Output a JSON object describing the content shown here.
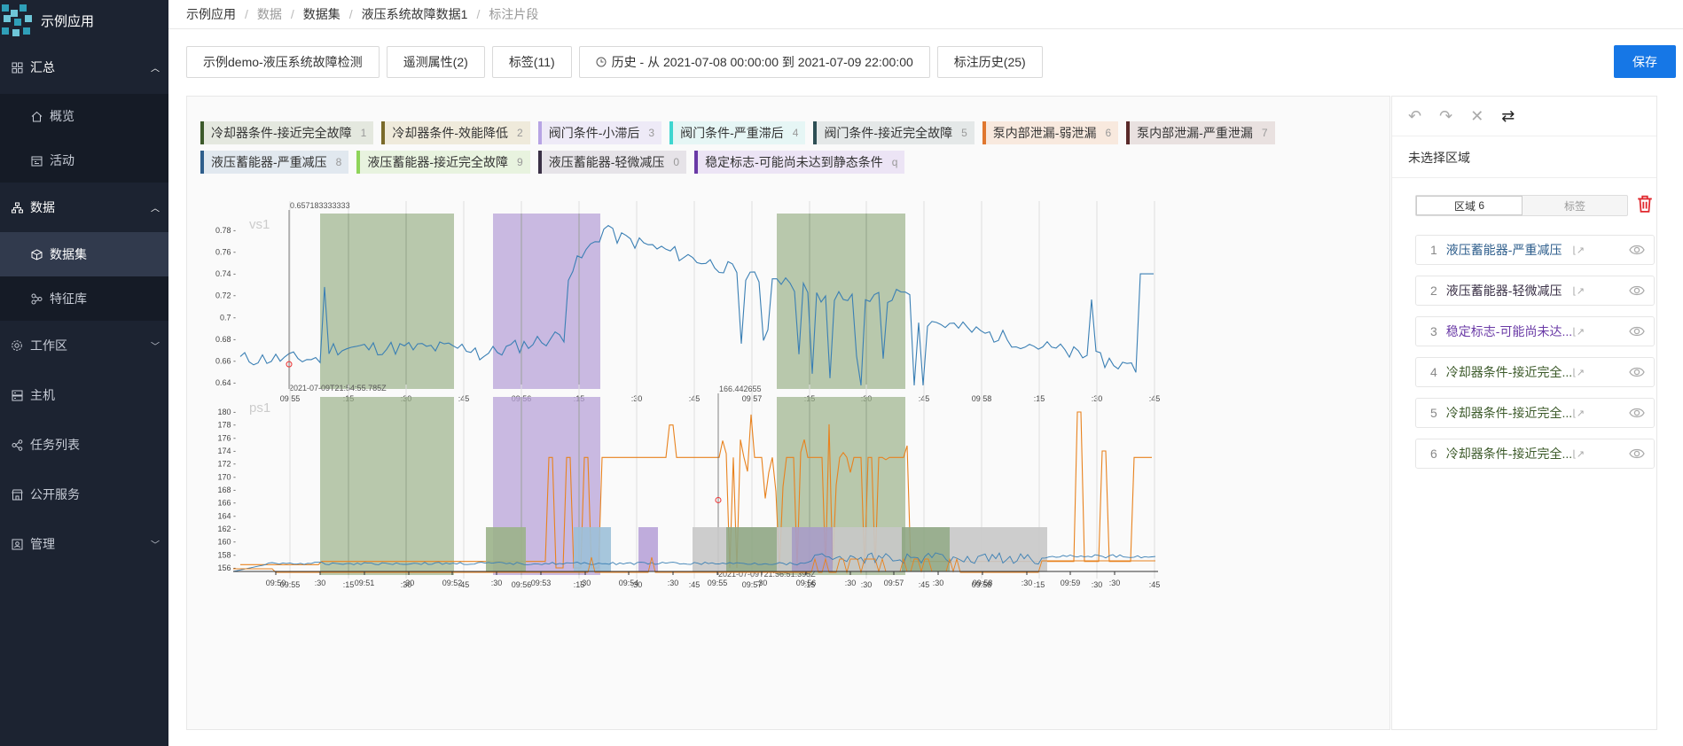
{
  "app": {
    "name": "示例应用"
  },
  "sidebar": {
    "items": [
      {
        "label": "汇总",
        "icon": "grid-icon"
      },
      {
        "label": "概览",
        "icon": "home-icon"
      },
      {
        "label": "活动",
        "icon": "calendar-icon"
      },
      {
        "label": "数据",
        "icon": "sitemap-icon"
      },
      {
        "label": "数据集",
        "icon": "cube-icon"
      },
      {
        "label": "特征库",
        "icon": "feature-icon"
      },
      {
        "label": "工作区",
        "icon": "gear-icon"
      },
      {
        "label": "主机",
        "icon": "server-icon"
      },
      {
        "label": "任务列表",
        "icon": "task-icon"
      },
      {
        "label": "公开服务",
        "icon": "shop-icon"
      },
      {
        "label": "管理",
        "icon": "admin-icon"
      }
    ]
  },
  "breadcrumb": [
    "示例应用",
    "数据",
    "数据集",
    "液压系统故障数据1",
    "标注片段"
  ],
  "toolbar": {
    "dataset": "示例demo-液压系统故障检测",
    "telemetry": "遥测属性(2)",
    "labels": "标签(11)",
    "history": "历史 - 从 2021-07-08 00:00:00 到 2021-07-09 22:00:00",
    "label_history": "标注历史(25)",
    "save": "保存"
  },
  "tags": [
    {
      "label": "冷却器条件-接近完全故障",
      "key": "1",
      "color": "#3c5a2a",
      "bg": "#e4e8df"
    },
    {
      "label": "冷却器条件-效能降低",
      "key": "2",
      "color": "#7a6a2a",
      "bg": "#efeadb"
    },
    {
      "label": "阀门条件-小滞后",
      "key": "3",
      "color": "#b7a4e4",
      "bg": "#eeeaf7"
    },
    {
      "label": "阀门条件-严重滞后",
      "key": "4",
      "color": "#3ed6d0",
      "bg": "#e6f6f5"
    },
    {
      "label": "阀门条件-接近完全故障",
      "key": "5",
      "color": "#2e4f55",
      "bg": "#e4e8e8"
    },
    {
      "label": "泵内部泄漏-弱泄漏",
      "key": "6",
      "color": "#e0772e",
      "bg": "#f8e9de"
    },
    {
      "label": "泵内部泄漏-严重泄漏",
      "key": "7",
      "color": "#5a2a2a",
      "bg": "#e9e1e0"
    },
    {
      "label": "液压蓄能器-严重减压",
      "key": "8",
      "color": "#2e5e8c",
      "bg": "#e1e8ef"
    },
    {
      "label": "液压蓄能器-接近完全故障",
      "key": "9",
      "color": "#8fd45a",
      "bg": "#e8f3df"
    },
    {
      "label": "液压蓄能器-轻微减压",
      "key": "0",
      "color": "#3a3046",
      "bg": "#e6e3e8"
    },
    {
      "label": "稳定标志-可能尚未达到静态条件",
      "key": "q",
      "color": "#6a3aa6",
      "bg": "#ece4f5"
    }
  ],
  "charts": {
    "vs1": {
      "name": "vs1",
      "yticks": [
        "0.78 -",
        "0.76 -",
        "0.74 -",
        "0.72 -",
        "0.7 -",
        "0.68 -",
        "0.66 -",
        "0.64 -"
      ],
      "cursor_value": "0.657183333333",
      "cursor_time": "2021-07-09T21:54:55.785Z",
      "xticks": [
        "09:55",
        ":15",
        ":30",
        ":45",
        "09:56",
        ":15",
        ":30",
        ":45",
        "09:57",
        ":15",
        ":30",
        ":45",
        "09:58",
        ":15",
        ":30",
        ":45"
      ]
    },
    "ps1": {
      "name": "ps1",
      "yticks": [
        "180 -",
        "178 -",
        "176 -",
        "174 -",
        "172 -",
        "170 -",
        "168 -",
        "166 -",
        "164 -",
        "162 -",
        "160 -",
        "158 -",
        "156 -"
      ],
      "cursor_value": "166.442655",
      "cursor_time": "2021-07-09T21:56:51.395Z",
      "xticks": [
        "09:55",
        ":15",
        ":30",
        ":45",
        "09:56",
        ":15",
        ":30",
        ":45",
        "09:57",
        ":15",
        ":30",
        ":45",
        "09:58",
        ":15",
        ":30",
        ":45"
      ]
    },
    "overview": {
      "xticks": [
        "09:50",
        ":30",
        "09:51",
        ":30",
        "09:52",
        ":30",
        "09:53",
        ":30",
        "09:54",
        ":30",
        "09:55",
        ":30",
        "09:56",
        ":30",
        "09:57",
        ":30",
        "09:58",
        ":30",
        "09:59",
        ":30"
      ]
    }
  },
  "right_panel": {
    "selection": "未选择区域",
    "tab_region": "区域",
    "tab_region_count": "6",
    "tab_label": "标签",
    "regions": [
      {
        "n": "1",
        "label": "液压蓄能器-严重减压",
        "color": "#2e5e8c"
      },
      {
        "n": "2",
        "label": "液压蓄能器-轻微减压",
        "color": "#3a3046"
      },
      {
        "n": "3",
        "label": "稳定标志-可能尚未达...",
        "color": "#6a3aa6"
      },
      {
        "n": "4",
        "label": "冷却器条件-接近完全...",
        "color": "#3c5a2a"
      },
      {
        "n": "5",
        "label": "冷却器条件-接近完全...",
        "color": "#3c5a2a"
      },
      {
        "n": "6",
        "label": "冷却器条件-接近完全...",
        "color": "#3c5a2a"
      }
    ]
  },
  "colors": {
    "vs1_line": "#3a7fb4",
    "ps1_line": "#e8821e",
    "primary": "#1677e6"
  }
}
